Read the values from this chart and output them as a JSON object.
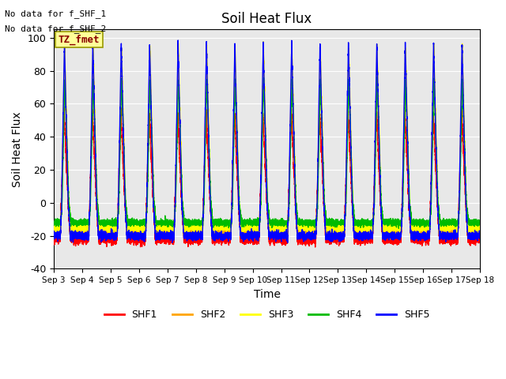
{
  "title": "Soil Heat Flux",
  "xlabel": "Time",
  "ylabel": "Soil Heat Flux",
  "annotations": [
    "No data for f_SHF_1",
    "No data for f_SHF_2"
  ],
  "box_label": "TZ_fmet",
  "box_color": "#FFFF99",
  "box_text_color": "#8B0000",
  "ylim": [
    -40,
    105
  ],
  "yticks": [
    -40,
    -20,
    0,
    20,
    40,
    60,
    80,
    100
  ],
  "series_colors": {
    "SHF1": "#FF0000",
    "SHF2": "#FFA500",
    "SHF3": "#FFFF00",
    "SHF4": "#00BB00",
    "SHF5": "#0000FF"
  },
  "n_days": 15,
  "background_color": "#E8E8E8",
  "grid_color": "#FFFFFF",
  "figsize": [
    6.4,
    4.8
  ],
  "dpi": 100
}
